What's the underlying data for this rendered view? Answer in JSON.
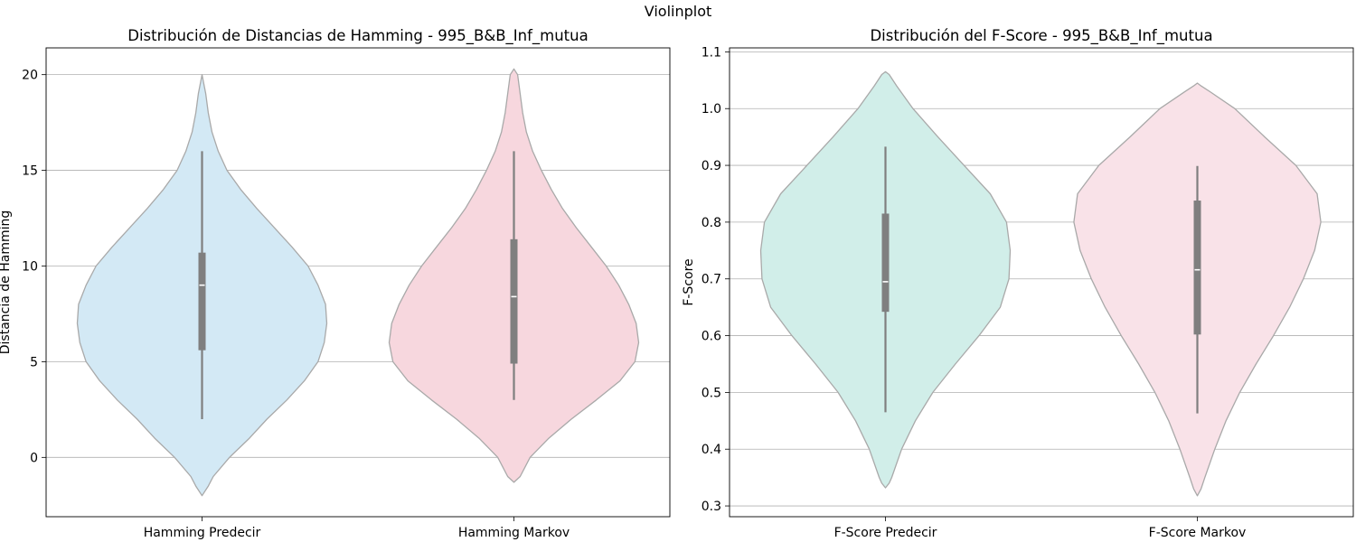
{
  "figure": {
    "suptitle": "Violinplot"
  },
  "chart_data": [
    {
      "type": "violin",
      "title": "Distribución de Distancias de Hamming - 995_B&B_Inf_mutua",
      "xlabel": "",
      "ylabel": "Distancia de Hamming",
      "ylim": [
        -3.1,
        21.4
      ],
      "yticks": [
        0,
        5,
        10,
        15,
        20
      ],
      "grid": "y",
      "categories": [
        "Hamming Predecir",
        "Hamming Markov"
      ],
      "series": [
        {
          "label": "Hamming Predecir",
          "color": "#d3e9f5",
          "min": 2,
          "q1": 5.6,
          "median": 9.0,
          "q3": 10.7,
          "max": 16,
          "density": [
            [
              -2.0,
              0.0
            ],
            [
              -1.5,
              0.05
            ],
            [
              -1.0,
              0.09
            ],
            [
              0.0,
              0.22
            ],
            [
              1.0,
              0.38
            ],
            [
              2.0,
              0.52
            ],
            [
              3.0,
              0.68
            ],
            [
              4.0,
              0.82
            ],
            [
              5.0,
              0.93
            ],
            [
              6.0,
              0.98
            ],
            [
              7.0,
              1.0
            ],
            [
              8.0,
              0.99
            ],
            [
              9.0,
              0.93
            ],
            [
              10.0,
              0.85
            ],
            [
              11.0,
              0.72
            ],
            [
              12.0,
              0.58
            ],
            [
              13.0,
              0.44
            ],
            [
              14.0,
              0.31
            ],
            [
              15.0,
              0.2
            ],
            [
              16.0,
              0.13
            ],
            [
              17.0,
              0.08
            ],
            [
              18.0,
              0.05
            ],
            [
              19.0,
              0.03
            ],
            [
              20.0,
              0.0
            ]
          ]
        },
        {
          "label": "Hamming Markov",
          "color": "#f7d7de",
          "min": 3,
          "q1": 4.9,
          "median": 8.4,
          "q3": 11.4,
          "max": 16,
          "density": [
            [
              -1.3,
              0.0
            ],
            [
              -1.0,
              0.05
            ],
            [
              0.0,
              0.13
            ],
            [
              1.0,
              0.28
            ],
            [
              2.0,
              0.46
            ],
            [
              3.0,
              0.66
            ],
            [
              4.0,
              0.85
            ],
            [
              5.0,
              0.97
            ],
            [
              6.0,
              1.0
            ],
            [
              7.0,
              0.98
            ],
            [
              8.0,
              0.92
            ],
            [
              9.0,
              0.84
            ],
            [
              10.0,
              0.74
            ],
            [
              11.0,
              0.62
            ],
            [
              12.0,
              0.5
            ],
            [
              13.0,
              0.39
            ],
            [
              14.0,
              0.3
            ],
            [
              15.0,
              0.22
            ],
            [
              16.0,
              0.15
            ],
            [
              17.0,
              0.1
            ],
            [
              18.0,
              0.07
            ],
            [
              19.0,
              0.05
            ],
            [
              20.0,
              0.03
            ],
            [
              20.3,
              0.0
            ]
          ]
        }
      ]
    },
    {
      "type": "violin",
      "title": "Distribución del F-Score - 995_B&B_Inf_mutua",
      "xlabel": "",
      "ylabel": "F-Score",
      "ylim": [
        0.281,
        1.107
      ],
      "yticks": [
        0.3,
        0.4,
        0.5,
        0.6,
        0.7,
        0.8,
        0.9,
        1.0,
        1.1
      ],
      "grid": "y",
      "categories": [
        "F-Score Predecir",
        "F-Score Markov"
      ],
      "series": [
        {
          "label": "F-Score Predecir",
          "color": "#d1eee9",
          "min": 0.465,
          "q1": 0.642,
          "median": 0.695,
          "q3": 0.815,
          "max": 0.933,
          "density": [
            [
              0.332,
              0.0
            ],
            [
              0.34,
              0.03
            ],
            [
              0.35,
              0.05
            ],
            [
              0.4,
              0.13
            ],
            [
              0.45,
              0.24
            ],
            [
              0.5,
              0.38
            ],
            [
              0.55,
              0.56
            ],
            [
              0.6,
              0.75
            ],
            [
              0.65,
              0.92
            ],
            [
              0.7,
              0.99
            ],
            [
              0.75,
              1.0
            ],
            [
              0.8,
              0.97
            ],
            [
              0.85,
              0.84
            ],
            [
              0.9,
              0.63
            ],
            [
              0.95,
              0.42
            ],
            [
              1.0,
              0.22
            ],
            [
              1.04,
              0.09
            ],
            [
              1.06,
              0.03
            ],
            [
              1.065,
              0.0
            ]
          ]
        },
        {
          "label": "F-Score Markov",
          "color": "#f9e2e8",
          "min": 0.463,
          "q1": 0.602,
          "median": 0.716,
          "q3": 0.838,
          "max": 0.899,
          "density": [
            [
              0.318,
              0.0
            ],
            [
              0.33,
              0.03
            ],
            [
              0.35,
              0.06
            ],
            [
              0.4,
              0.14
            ],
            [
              0.45,
              0.23
            ],
            [
              0.5,
              0.34
            ],
            [
              0.55,
              0.47
            ],
            [
              0.6,
              0.61
            ],
            [
              0.65,
              0.74
            ],
            [
              0.7,
              0.85
            ],
            [
              0.75,
              0.94
            ],
            [
              0.8,
              0.99
            ],
            [
              0.85,
              0.96
            ],
            [
              0.9,
              0.79
            ],
            [
              0.95,
              0.54
            ],
            [
              1.0,
              0.3
            ],
            [
              1.03,
              0.1
            ],
            [
              1.04,
              0.03
            ],
            [
              1.045,
              0.0
            ]
          ]
        }
      ]
    }
  ]
}
